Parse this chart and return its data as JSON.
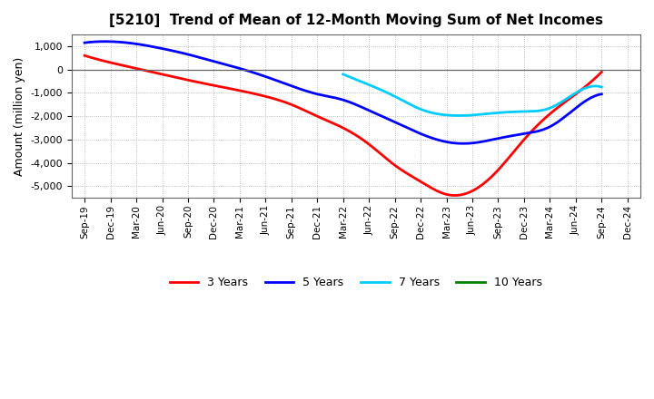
{
  "title": "[5210]  Trend of Mean of 12-Month Moving Sum of Net Incomes",
  "ylabel": "Amount (million yen)",
  "x_labels": [
    "Sep-19",
    "Dec-19",
    "Mar-20",
    "Jun-20",
    "Sep-20",
    "Dec-20",
    "Mar-21",
    "Jun-21",
    "Sep-21",
    "Dec-21",
    "Mar-22",
    "Jun-22",
    "Sep-22",
    "Dec-22",
    "Mar-23",
    "Jun-23",
    "Sep-23",
    "Dec-23",
    "Mar-24",
    "Jun-24",
    "Sep-24",
    "Dec-24"
  ],
  "ylim": [
    -5500,
    1500
  ],
  "yticks": [
    -5000,
    -4000,
    -3000,
    -2000,
    -1000,
    0,
    1000
  ],
  "series": {
    "3 Years": {
      "color": "#FF0000",
      "data": [
        600,
        300,
        50,
        -200,
        -450,
        -680,
        -900,
        -1150,
        -1500,
        -2000,
        -2500,
        -3200,
        -4100,
        -4800,
        -5350,
        -5200,
        -4300,
        -3000,
        -1900,
        -1050,
        -100,
        null
      ]
    },
    "5 Years": {
      "color": "#0000FF",
      "data": [
        1150,
        1200,
        1100,
        900,
        650,
        350,
        50,
        -300,
        -700,
        -1050,
        -1300,
        -1750,
        -2250,
        -2750,
        -3100,
        -3150,
        -2950,
        -2750,
        -2450,
        -1650,
        -1050,
        null
      ]
    },
    "7 Years": {
      "color": "#00CCFF",
      "data": [
        null,
        null,
        null,
        null,
        null,
        null,
        null,
        null,
        null,
        null,
        -200,
        -650,
        -1150,
        -1700,
        -1950,
        -1950,
        -1850,
        -1800,
        -1650,
        -1000,
        -750,
        null
      ]
    },
    "10 Years": {
      "color": "#008000",
      "data": [
        null,
        null,
        null,
        null,
        null,
        null,
        null,
        null,
        null,
        null,
        null,
        null,
        null,
        null,
        null,
        null,
        null,
        null,
        null,
        null,
        null,
        null
      ]
    }
  },
  "background_color": "#FFFFFF",
  "plot_bg_color": "#FFFFFF",
  "grid_color": "#AAAAAA",
  "legend_labels": [
    "3 Years",
    "5 Years",
    "7 Years",
    "10 Years"
  ],
  "legend_colors": [
    "#FF0000",
    "#0000FF",
    "#00CCFF",
    "#008000"
  ]
}
